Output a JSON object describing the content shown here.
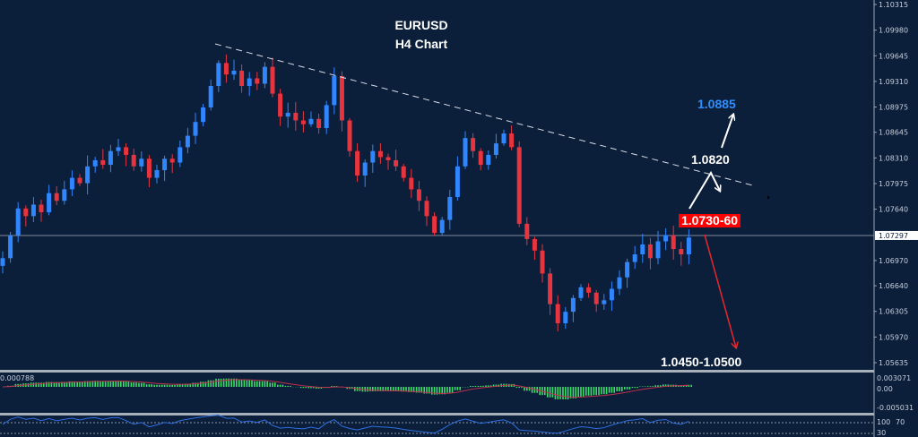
{
  "chart_data": {
    "type": "candlestick",
    "title": "EURUSD",
    "subtitle": "H4 Chart",
    "symbol": "EURUSD",
    "timeframe": "H4",
    "ylim": [
      1.05635,
      1.10315
    ],
    "y_ticks": [
      "1.10315",
      "1.09980",
      "1.09645",
      "1.09310",
      "1.08975",
      "1.08645",
      "1.08310",
      "1.07975",
      "1.07640",
      "1.06970",
      "1.06640",
      "1.06305",
      "1.05970",
      "1.05635"
    ],
    "current_price": "1.07297",
    "closes": [
      1.07,
      1.073,
      1.0765,
      1.0755,
      1.077,
      1.076,
      1.0785,
      1.0775,
      1.079,
      1.0805,
      1.0798,
      1.082,
      1.0828,
      1.0822,
      1.084,
      1.0845,
      1.0835,
      1.082,
      1.083,
      1.0805,
      1.0815,
      1.083,
      1.0825,
      1.0845,
      1.086,
      1.0878,
      1.0897,
      1.0925,
      1.0955,
      1.094,
      1.0945,
      1.0925,
      1.0935,
      1.0928,
      1.095,
      1.0915,
      1.0885,
      1.089,
      1.088,
      1.0875,
      1.0882,
      1.087,
      1.09,
      1.0938,
      1.088,
      1.084,
      1.0808,
      1.0825,
      1.084,
      1.0832,
      1.0828,
      1.082,
      1.0805,
      1.079,
      1.0775,
      1.0755,
      1.0733,
      1.075,
      1.078,
      1.082,
      1.0857,
      1.084,
      1.0822,
      1.0835,
      1.085,
      1.0863,
      1.0845,
      1.0745,
      1.0725,
      1.071,
      1.068,
      1.064,
      1.0615,
      1.063,
      1.0648,
      1.0662,
      1.0655,
      1.064,
      1.0645,
      1.066,
      1.0675,
      1.0695,
      1.0705,
      1.0718,
      1.07,
      1.0722,
      1.073,
      1.0712,
      1.0705,
      1.0727
    ],
    "annotations": {
      "target_up": "1.0885",
      "resistance": "1.0820",
      "pivot_zone": "1.0730-60",
      "target_down": "1.0450-1.0500"
    },
    "trendline": {
      "from_price": 1.098,
      "to_price": 1.0795,
      "style": "dashed"
    },
    "macd": {
      "value_label": "0.000788",
      "ticks": [
        "0.003071",
        "0.00",
        "-0.005031"
      ]
    },
    "rsi": {
      "ticks": [
        "100",
        "70",
        "30"
      ]
    },
    "colors": {
      "background": "#0b1e3a",
      "bull": "#2f86ff",
      "bear": "#e8343f",
      "macd_hist": "#3ddc6a",
      "macd_signal": "#c0304a",
      "rsi_line": "#2f6fe0",
      "target_up": "#2f8fff",
      "pivot_bg": "#ff0000"
    }
  }
}
